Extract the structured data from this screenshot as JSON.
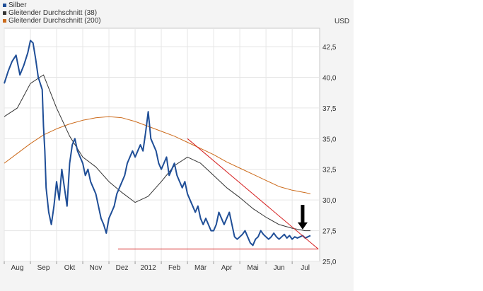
{
  "legend": [
    {
      "label": "Silber",
      "color": "#1f4e97"
    },
    {
      "label": "Gleitender Durchschnitt (38)",
      "color": "#333333"
    },
    {
      "label": "Gleitender Durchschnitt (200)",
      "color": "#cc6a1a"
    }
  ],
  "unit": "USD",
  "chart_data": {
    "type": "line",
    "xlabel": "",
    "ylabel": "",
    "x_ticks": [
      "Aug",
      "Sep",
      "Okt",
      "Nov",
      "Dez",
      "2012",
      "Feb",
      "Mär",
      "Apr",
      "Mai",
      "Jun",
      "Jul"
    ],
    "y_ticks": [
      "25,0",
      "27,5",
      "30,0",
      "32,5",
      "35,0",
      "37,5",
      "40,0",
      "42,5"
    ],
    "ylim": [
      25.0,
      44.0
    ],
    "x_range_months": [
      0,
      12.05
    ],
    "grid": true,
    "series": [
      {
        "name": "Silber",
        "color": "#1f4e97",
        "x": [
          0,
          0.15,
          0.3,
          0.45,
          0.6,
          0.75,
          0.9,
          1.0,
          1.1,
          1.2,
          1.3,
          1.45,
          1.5,
          1.55,
          1.6,
          1.7,
          1.8,
          1.9,
          2.0,
          2.1,
          2.2,
          2.3,
          2.4,
          2.5,
          2.6,
          2.7,
          2.8,
          2.9,
          3.0,
          3.1,
          3.2,
          3.3,
          3.4,
          3.5,
          3.6,
          3.7,
          3.8,
          3.9,
          4.0,
          4.1,
          4.2,
          4.3,
          4.4,
          4.5,
          4.6,
          4.7,
          4.8,
          4.9,
          5.0,
          5.1,
          5.2,
          5.3,
          5.4,
          5.5,
          5.6,
          5.7,
          5.8,
          5.9,
          6.0,
          6.1,
          6.2,
          6.3,
          6.4,
          6.5,
          6.6,
          6.7,
          6.8,
          6.9,
          7.0,
          7.1,
          7.2,
          7.3,
          7.4,
          7.5,
          7.6,
          7.7,
          7.8,
          7.9,
          8.0,
          8.1,
          8.2,
          8.3,
          8.4,
          8.5,
          8.6,
          8.7,
          8.8,
          8.9,
          9.0,
          9.1,
          9.2,
          9.3,
          9.4,
          9.5,
          9.6,
          9.7,
          9.8,
          9.9,
          10.0,
          10.1,
          10.2,
          10.3,
          10.4,
          10.5,
          10.6,
          10.7,
          10.8,
          10.9,
          11.0,
          11.1,
          11.2,
          11.3,
          11.4,
          11.5,
          11.6,
          11.7
        ],
        "y": [
          39.5,
          40.5,
          41.3,
          41.8,
          40.2,
          41.0,
          42.0,
          43.0,
          42.8,
          41.5,
          40.0,
          39.0,
          36.0,
          34.0,
          31.0,
          29.0,
          28.0,
          29.5,
          31.5,
          30.0,
          32.5,
          31.0,
          29.5,
          33.0,
          34.5,
          35.0,
          34.0,
          33.5,
          33.0,
          32.0,
          32.5,
          31.5,
          31.0,
          30.5,
          29.5,
          28.5,
          28.0,
          27.3,
          28.5,
          29.0,
          29.5,
          30.5,
          31.0,
          31.5,
          32.0,
          33.0,
          33.5,
          34.0,
          33.5,
          34.0,
          34.5,
          34.0,
          35.5,
          37.2,
          35.0,
          34.5,
          34.0,
          33.0,
          32.5,
          33.0,
          33.5,
          32.0,
          32.5,
          33.0,
          32.0,
          31.5,
          31.0,
          31.5,
          30.5,
          30.0,
          29.5,
          29.0,
          29.5,
          28.5,
          28.0,
          28.5,
          28.0,
          27.5,
          27.5,
          28.0,
          29.0,
          28.5,
          28.0,
          28.5,
          29.0,
          28.0,
          27.0,
          26.8,
          27.0,
          27.2,
          27.5,
          27.0,
          26.5,
          26.3,
          26.8,
          27.0,
          27.5,
          27.2,
          27.0,
          26.8,
          27.0,
          27.3,
          27.0,
          26.8,
          27.0,
          27.2,
          26.9,
          27.1,
          26.8,
          27.0,
          26.9,
          27.0,
          27.1,
          26.9,
          27.0,
          27.1
        ]
      },
      {
        "name": "Gleitender Durchschnitt (38)",
        "color": "#333333",
        "x": [
          0,
          0.5,
          1.0,
          1.5,
          2.0,
          2.5,
          3.0,
          3.5,
          4.0,
          4.5,
          5.0,
          5.5,
          6.0,
          6.5,
          7.0,
          7.5,
          8.0,
          8.5,
          9.0,
          9.5,
          10.0,
          10.5,
          11.0,
          11.5,
          11.7
        ],
        "y": [
          36.8,
          37.5,
          39.5,
          40.2,
          37.5,
          35.2,
          33.5,
          32.7,
          31.5,
          30.6,
          29.8,
          30.3,
          31.5,
          32.8,
          33.5,
          33.0,
          32.0,
          31.0,
          30.2,
          29.3,
          28.6,
          28.0,
          27.7,
          27.5,
          27.5
        ]
      },
      {
        "name": "Gleitender Durchschnitt (200)",
        "color": "#cc6a1a",
        "x": [
          0,
          0.5,
          1.0,
          1.5,
          2.0,
          2.5,
          3.0,
          3.5,
          4.0,
          4.5,
          5.0,
          5.5,
          6.0,
          6.5,
          7.0,
          7.5,
          8.0,
          8.5,
          9.0,
          9.5,
          10.0,
          10.5,
          11.0,
          11.5,
          11.7
        ],
        "y": [
          33.0,
          33.8,
          34.6,
          35.3,
          35.8,
          36.2,
          36.5,
          36.7,
          36.8,
          36.7,
          36.4,
          36.0,
          35.6,
          35.2,
          34.7,
          34.2,
          33.7,
          33.1,
          32.6,
          32.1,
          31.6,
          31.1,
          30.8,
          30.6,
          30.5
        ]
      }
    ],
    "annotations": [
      {
        "type": "trendline",
        "color": "#d62020",
        "x1": 7.0,
        "y1": 35.0,
        "x2": 12.0,
        "y2": 26.0
      },
      {
        "type": "support_line",
        "color": "#d62020",
        "x1": 4.35,
        "x2": 12.0,
        "y": 26.0
      },
      {
        "type": "arrow",
        "color": "#000000",
        "x": 11.4,
        "y_from": 29.6,
        "y_to": 27.6
      }
    ]
  }
}
